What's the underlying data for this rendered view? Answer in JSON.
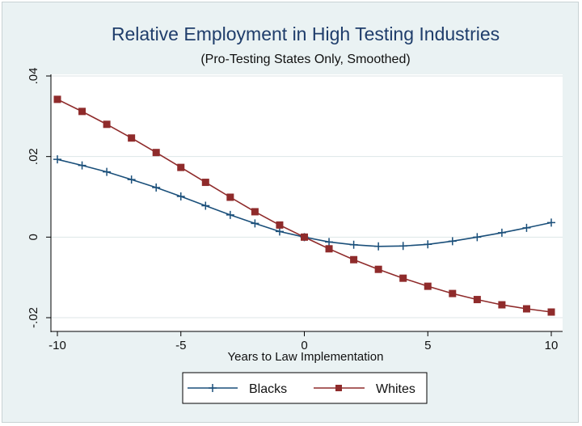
{
  "chart_data": {
    "type": "line",
    "title": "Relative Employment in High Testing Industries",
    "subtitle": "(Pro-Testing States Only, Smoothed)",
    "xlabel": "Years to Law Implementation",
    "ylabel": "",
    "xlim": [
      -10,
      10
    ],
    "ylim": [
      -0.02,
      0.04
    ],
    "x_ticks": [
      -10,
      -5,
      0,
      5,
      10
    ],
    "x_tick_labels": [
      "-10",
      "-5",
      "0",
      "5",
      "10"
    ],
    "y_ticks": [
      -0.02,
      0,
      0.02,
      0.04
    ],
    "y_tick_labels": [
      "-.02",
      "0",
      ".02",
      ".04"
    ],
    "grid": true,
    "legend_position": "bottom",
    "x": [
      -10,
      -9,
      -8,
      -7,
      -6,
      -5,
      -4,
      -3,
      -2,
      -1,
      0,
      1,
      2,
      3,
      4,
      5,
      6,
      7,
      8,
      9,
      10
    ],
    "series": [
      {
        "name": "Blacks",
        "color": "#1a4f7a",
        "marker": "plus",
        "values": [
          0.0193,
          0.0178,
          0.0162,
          0.0143,
          0.0123,
          0.0101,
          0.0078,
          0.0055,
          0.0034,
          0.0014,
          0.0,
          -0.0012,
          -0.0019,
          -0.0023,
          -0.0022,
          -0.0018,
          -0.001,
          0.0,
          0.0011,
          0.0023,
          0.0036
        ]
      },
      {
        "name": "Whites",
        "color": "#8f2b2b",
        "marker": "square",
        "values": [
          0.0342,
          0.0312,
          0.028,
          0.0246,
          0.021,
          0.0173,
          0.0136,
          0.0099,
          0.0063,
          0.003,
          0.0,
          -0.0029,
          -0.0056,
          -0.008,
          -0.0102,
          -0.0122,
          -0.014,
          -0.0155,
          -0.0168,
          -0.0178,
          -0.0186
        ]
      }
    ]
  }
}
